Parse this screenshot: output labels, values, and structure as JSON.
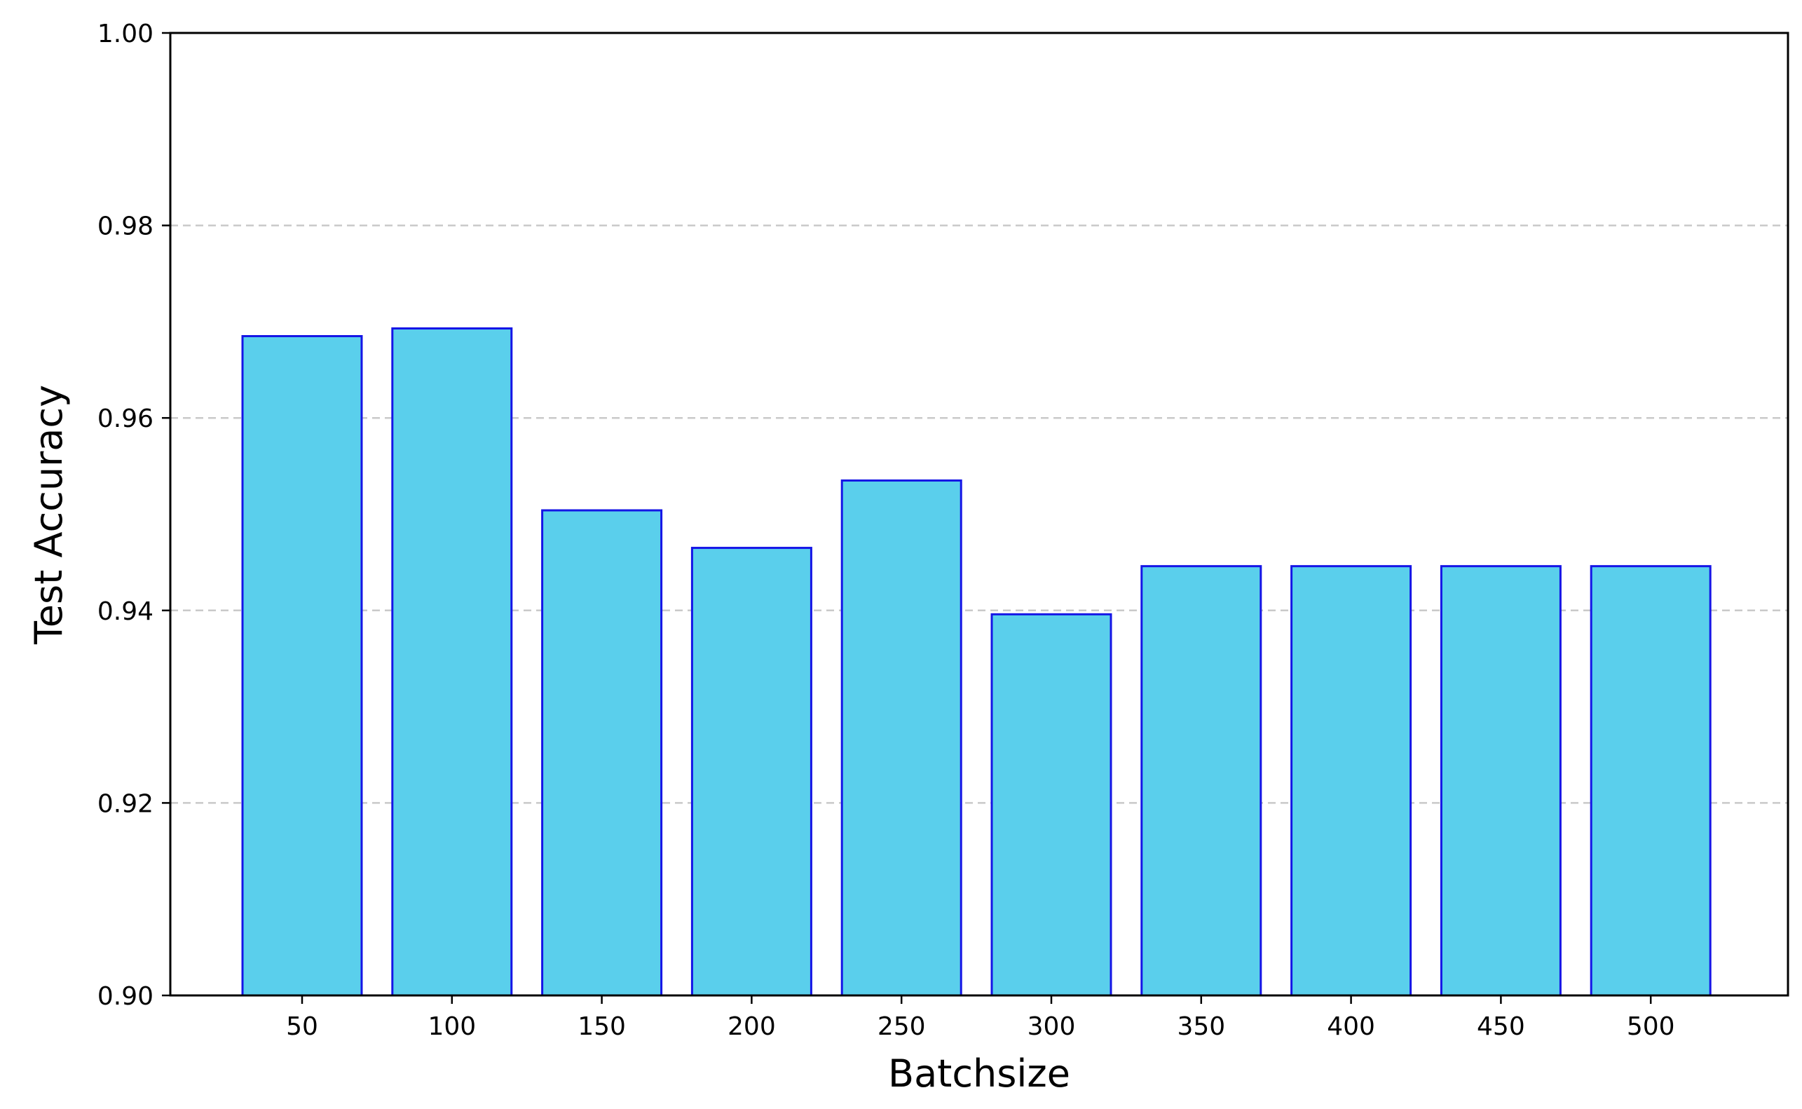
{
  "chart_data": {
    "type": "bar",
    "categories": [
      "50",
      "100",
      "150",
      "200",
      "250",
      "300",
      "350",
      "400",
      "450",
      "500"
    ],
    "values": [
      0.9685,
      0.9693,
      0.9504,
      0.9465,
      0.9535,
      0.9396,
      0.9446,
      0.9446,
      0.9446,
      0.9446
    ],
    "xlabel": "Batchsize",
    "ylabel": "Test Accuracy",
    "ylim": [
      0.9,
      1.0
    ],
    "yticks": [
      "0.90",
      "0.92",
      "0.94",
      "0.96",
      "0.98",
      "1.00"
    ],
    "grid": "y-dashed",
    "legend": "none",
    "colors": {
      "bar_fill": "#5ACFEC",
      "bar_edge": "#1515E6",
      "grid": "#c9c9c9"
    }
  }
}
